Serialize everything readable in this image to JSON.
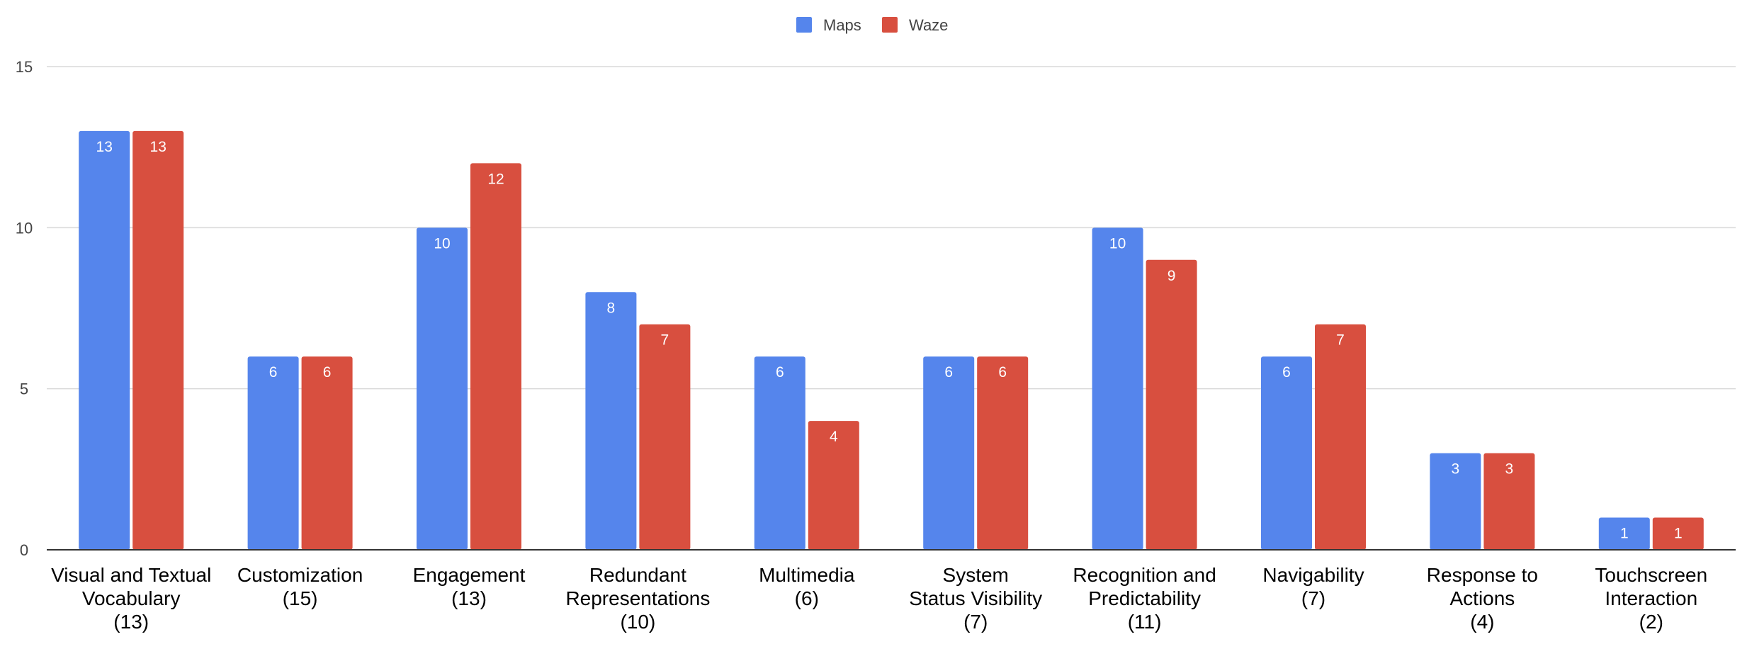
{
  "chart_data": {
    "type": "bar",
    "title": "",
    "xlabel": "",
    "ylabel": "",
    "ylim": [
      0,
      15
    ],
    "yticks": [
      0,
      5,
      10,
      15
    ],
    "grid": true,
    "legend_position": "top-center",
    "categories": [
      [
        "Visual and Textual",
        "Vocabulary",
        "(13)"
      ],
      [
        "Customization",
        "(15)"
      ],
      [
        "Engagement",
        "(13)"
      ],
      [
        "Redundant",
        "Representations",
        "(10)"
      ],
      [
        "Multimedia",
        "(6)"
      ],
      [
        "System",
        "Status Visibility",
        "(7)"
      ],
      [
        "Recognition and",
        "Predictability",
        "(11)"
      ],
      [
        "Navigability",
        "(7)"
      ],
      [
        "Response to",
        "Actions",
        "(4)"
      ],
      [
        "Touchscreen",
        "Interaction",
        "(2)"
      ]
    ],
    "series": [
      {
        "name": "Maps",
        "color": "#5585ec",
        "values": [
          13,
          6,
          10,
          8,
          6,
          6,
          10,
          6,
          3,
          1
        ]
      },
      {
        "name": "Waze",
        "color": "#d84f3f",
        "values": [
          13,
          6,
          12,
          7,
          4,
          6,
          9,
          7,
          3,
          1
        ]
      }
    ]
  }
}
